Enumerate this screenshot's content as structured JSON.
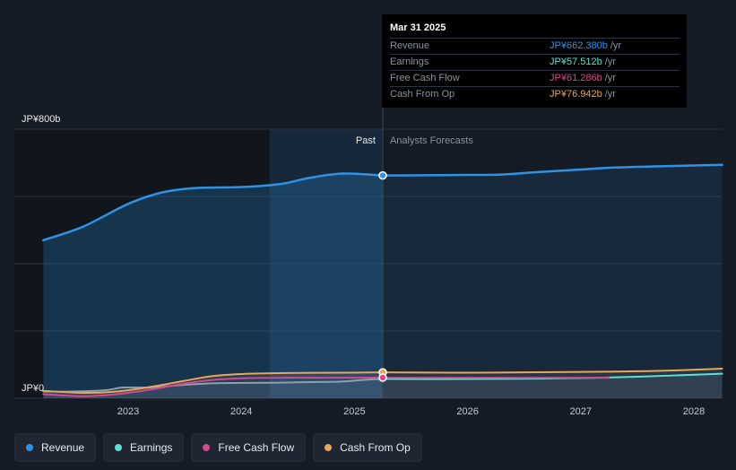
{
  "chart_data": {
    "type": "area",
    "y_tick_labels": [
      "JP¥800b",
      "JP¥0"
    ],
    "ylim": [
      0,
      800
    ],
    "x_ticks": [
      "2023",
      "2024",
      "2025",
      "2026",
      "2027",
      "2028"
    ],
    "x_tick_values": [
      2023,
      2024,
      2025,
      2026,
      2027,
      2028
    ],
    "xlim": [
      2021.75,
      2028.25
    ],
    "divider_x": 2025.25,
    "past_label": "Past",
    "forecast_label": "Analysts Forecasts",
    "grid": true,
    "series": [
      {
        "name": "Revenue",
        "color": "#2e93e6",
        "past": [
          [
            2022.25,
            470
          ],
          [
            2022.6,
            510
          ],
          [
            2023.0,
            578
          ],
          [
            2023.3,
            612
          ],
          [
            2023.6,
            625
          ],
          [
            2024.0,
            628
          ],
          [
            2024.35,
            637
          ],
          [
            2024.6,
            655
          ],
          [
            2024.9,
            668
          ],
          [
            2025.25,
            662.38
          ]
        ],
        "forecast": [
          [
            2025.25,
            662.38
          ],
          [
            2025.6,
            663
          ],
          [
            2026.0,
            664
          ],
          [
            2026.3,
            665
          ],
          [
            2026.6,
            672
          ],
          [
            2027.0,
            680
          ],
          [
            2027.3,
            686
          ],
          [
            2027.75,
            690
          ],
          [
            2028.25,
            694
          ]
        ]
      },
      {
        "name": "Earnings",
        "color": "#5ce0d2",
        "past": [
          [
            2022.25,
            20
          ],
          [
            2022.5,
            20
          ],
          [
            2022.8,
            24
          ],
          [
            2022.95,
            32
          ],
          [
            2023.2,
            32
          ],
          [
            2023.5,
            40
          ],
          [
            2023.8,
            45
          ],
          [
            2024.2,
            46
          ],
          [
            2024.6,
            48
          ],
          [
            2024.9,
            50
          ],
          [
            2025.1,
            55
          ],
          [
            2025.25,
            57.512
          ]
        ],
        "forecast": [
          [
            2025.25,
            57.512
          ],
          [
            2025.8,
            57
          ],
          [
            2026.4,
            58
          ],
          [
            2027.0,
            60
          ],
          [
            2027.5,
            64
          ],
          [
            2028.25,
            73
          ]
        ]
      },
      {
        "name": "Free Cash Flow",
        "color": "#d3498a",
        "past": [
          [
            2022.25,
            12
          ],
          [
            2022.6,
            6
          ],
          [
            2022.9,
            12
          ],
          [
            2023.2,
            26
          ],
          [
            2023.5,
            44
          ],
          [
            2023.8,
            56
          ],
          [
            2024.1,
            60
          ],
          [
            2024.5,
            61
          ],
          [
            2024.9,
            61
          ],
          [
            2025.25,
            61.286
          ]
        ],
        "forecast": [
          [
            2025.25,
            61.286
          ],
          [
            2026.0,
            61
          ],
          [
            2026.6,
            61
          ],
          [
            2027.25,
            61
          ]
        ]
      },
      {
        "name": "Cash From Op",
        "color": "#e8a658",
        "past": [
          [
            2022.25,
            22
          ],
          [
            2022.6,
            16
          ],
          [
            2022.9,
            20
          ],
          [
            2023.2,
            34
          ],
          [
            2023.5,
            52
          ],
          [
            2023.75,
            66
          ],
          [
            2024.0,
            72
          ],
          [
            2024.4,
            75
          ],
          [
            2024.9,
            76
          ],
          [
            2025.25,
            76.942
          ]
        ],
        "forecast": [
          [
            2025.25,
            76.942
          ],
          [
            2026.0,
            76
          ],
          [
            2026.5,
            77
          ],
          [
            2027.25,
            79
          ],
          [
            2027.75,
            82
          ],
          [
            2028.25,
            88
          ]
        ]
      }
    ]
  },
  "tooltip": {
    "date": "Mar 31 2025",
    "rows": [
      {
        "label": "Revenue",
        "value": "JP¥662.380b",
        "unit": "/yr",
        "color": "#2e93e6"
      },
      {
        "label": "Earnings",
        "value": "JP¥57.512b",
        "unit": "/yr",
        "color": "#5ce0d2"
      },
      {
        "label": "Free Cash Flow",
        "value": "JP¥61.286b",
        "unit": "/yr",
        "color": "#d3498a"
      },
      {
        "label": "Cash From Op",
        "value": "JP¥76.942b",
        "unit": "/yr",
        "color": "#e8a658"
      }
    ]
  },
  "legend": [
    {
      "label": "Revenue",
      "color": "#2e93e6"
    },
    {
      "label": "Earnings",
      "color": "#5ce0d2"
    },
    {
      "label": "Free Cash Flow",
      "color": "#d3498a"
    },
    {
      "label": "Cash From Op",
      "color": "#e8a658"
    }
  ]
}
